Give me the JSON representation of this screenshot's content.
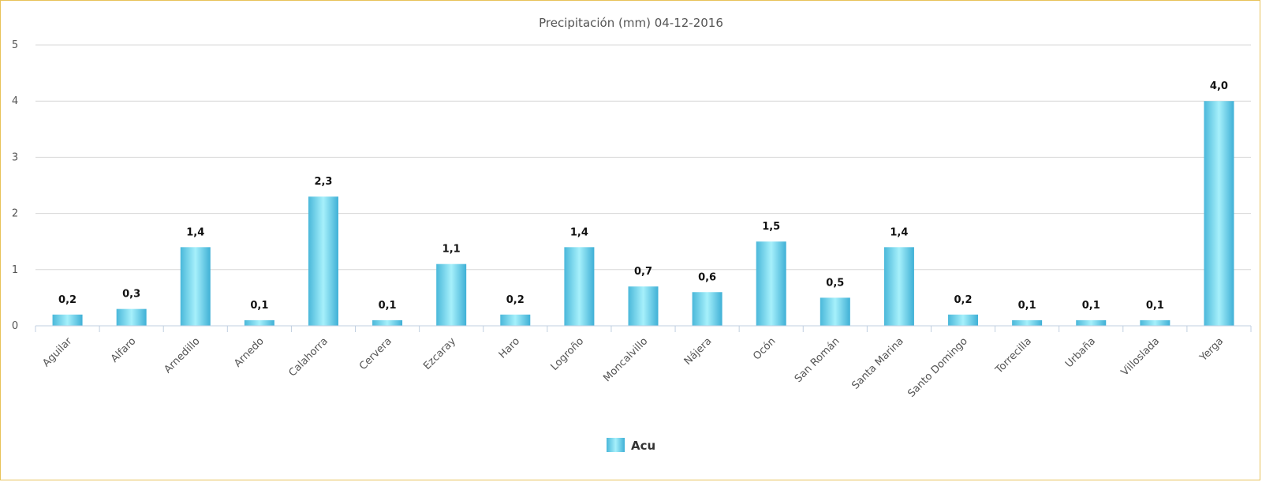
{
  "chart_data": {
    "type": "bar",
    "title": "Precipitación (mm) 04-12-2016",
    "xlabel": "",
    "ylabel": "",
    "ylim": [
      0,
      5
    ],
    "yticks": [
      "0",
      "1",
      "2",
      "3",
      "4",
      "5"
    ],
    "grid": true,
    "legend_position": "bottom",
    "categories": [
      "Aguilar",
      "Alfaro",
      "Arnedillo",
      "Arnedo",
      "Calahorra",
      "Cervera",
      "Ezcaray",
      "Haro",
      "Logroño",
      "Moncalvillo",
      "Nájera",
      "Ocón",
      "San Román",
      "Santa Marina",
      "Santo Domingo",
      "Torrecilla",
      "Urbaña",
      "Villoslada",
      "Yerga"
    ],
    "series": [
      {
        "name": "Acu",
        "color": "#5bc8e6",
        "values": [
          0.2,
          0.3,
          1.4,
          0.1,
          2.3,
          0.1,
          1.1,
          0.2,
          1.4,
          0.7,
          0.6,
          1.5,
          0.5,
          1.4,
          0.2,
          0.1,
          0.1,
          0.1,
          4.0
        ],
        "data_labels": [
          "0,2",
          "0,3",
          "1,4",
          "0,1",
          "2,3",
          "0,1",
          "1,1",
          "0,2",
          "1,4",
          "0,7",
          "0,6",
          "1,5",
          "0,5",
          "1,4",
          "0,2",
          "0,1",
          "0,1",
          "0,1",
          "4,0"
        ]
      }
    ]
  }
}
